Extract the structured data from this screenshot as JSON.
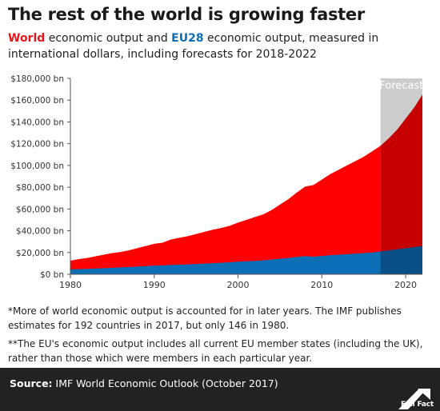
{
  "title": "The rest of the world is growing faster",
  "subtitle": {
    "world_label": "World",
    "part1": " economic output and ",
    "eu_label": "EU28",
    "part2": " economic output, measured in international dollars, including forecasts for 2018-2022"
  },
  "notes": [
    "*More of world economic output is accounted for in later years. The IMF publishes estimates for 192 countries in 2017, but only 146 in 1980.",
    "**The EU's economic output includes all current EU member states (including the UK), rather than those which were members in each particular year."
  ],
  "footer": {
    "source_label": "Source:",
    "source_text": " IMF World Economic Outlook (October 2017)",
    "logo_text": "Full Fact"
  },
  "colors": {
    "world": "#ff0000",
    "world_forecast": "#c60000",
    "eu": "#0c6fb5",
    "eu_forecast": "#0a4f86",
    "forecast_band": "#cccccc"
  },
  "chart_data": {
    "type": "area",
    "title": "",
    "xlabel": "",
    "ylabel": "",
    "xlim": [
      1980,
      2022
    ],
    "ylim": [
      0,
      180000
    ],
    "grid": false,
    "x_ticks": [
      1980,
      1990,
      2000,
      2010,
      2020
    ],
    "y_ticks": [
      0,
      20000,
      40000,
      60000,
      80000,
      100000,
      120000,
      140000,
      160000,
      180000
    ],
    "y_tick_labels": [
      "$0 bn",
      "$20,000 bn",
      "$40,000 bn",
      "$60,000 bn",
      "$80,000 bn",
      "$100,000 bn",
      "$120,000 bn",
      "$140,000 bn",
      "$160,000 bn",
      "$180,000 bn"
    ],
    "forecast": {
      "label": "Forecast",
      "from": 2017,
      "to": 2022
    },
    "x": [
      1980,
      1981,
      1982,
      1983,
      1984,
      1985,
      1986,
      1987,
      1988,
      1989,
      1990,
      1991,
      1992,
      1993,
      1994,
      1995,
      1996,
      1997,
      1998,
      1999,
      2000,
      2001,
      2002,
      2003,
      2004,
      2005,
      2006,
      2007,
      2008,
      2009,
      2010,
      2011,
      2012,
      2013,
      2014,
      2015,
      2016,
      2017,
      2018,
      2019,
      2020,
      2021,
      2022
    ],
    "series": [
      {
        "name": "World",
        "values": [
          12500,
          14000,
          15000,
          16500,
          18000,
          19500,
          20500,
          22000,
          24000,
          26000,
          28000,
          29000,
          32000,
          33500,
          35000,
          37000,
          39000,
          41000,
          42500,
          44500,
          47500,
          50000,
          52500,
          55000,
          59000,
          64000,
          69000,
          75000,
          80500,
          82000,
          87000,
          92000,
          96000,
          100000,
          104000,
          108000,
          113000,
          118000,
          125000,
          133000,
          143000,
          153000,
          165000
        ]
      },
      {
        "name": "EU28",
        "values": [
          4500,
          4800,
          5000,
          5300,
          5600,
          6000,
          6300,
          6700,
          7100,
          7500,
          8000,
          8200,
          8600,
          8800,
          9100,
          9500,
          9800,
          10200,
          10600,
          11000,
          11600,
          11900,
          12300,
          12800,
          13500,
          14300,
          15000,
          16000,
          16600,
          16200,
          16800,
          17500,
          18000,
          18500,
          19000,
          19500,
          20000,
          21000,
          22000,
          23000,
          24000,
          25000,
          26000
        ]
      }
    ]
  }
}
